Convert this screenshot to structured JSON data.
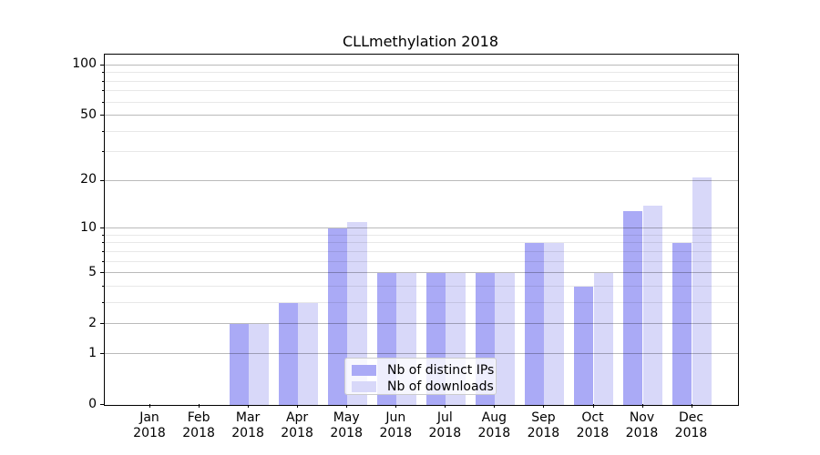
{
  "title": "CLLmethylation 2018",
  "chart_data": {
    "type": "bar",
    "title": "CLLmethylation 2018",
    "categories": [
      "Jan",
      "Feb",
      "Mar",
      "Apr",
      "May",
      "Jun",
      "Jul",
      "Aug",
      "Sep",
      "Oct",
      "Nov",
      "Dec"
    ],
    "year": "2018",
    "series": [
      {
        "name": "Nb of distinct IPs",
        "color": "#aaaaf6",
        "values": [
          0,
          0,
          2,
          3,
          10,
          5,
          5,
          5,
          8,
          4,
          13,
          8
        ]
      },
      {
        "name": "Nb of downloads",
        "color": "#d8d8f9",
        "values": [
          0,
          0,
          2,
          3,
          11,
          5,
          5,
          5,
          8,
          5,
          14,
          21
        ]
      }
    ],
    "xlabel": "",
    "ylabel": "",
    "yscale": "log1p",
    "ylim": [
      0,
      116
    ],
    "y_major_ticks": [
      0,
      1,
      2,
      5,
      10,
      20,
      50,
      100
    ],
    "y_minor_ticks": [
      3,
      4,
      6,
      7,
      8,
      9,
      30,
      40,
      60,
      70,
      80,
      90
    ],
    "grid": true,
    "grid_above_bars": true,
    "legend_position": "lower center",
    "bar_group_offsets": [
      -1,
      0
    ]
  },
  "colors": {
    "background": "#ffffff",
    "axis": "#000000",
    "grid_major": "#bababa",
    "grid_minor": "#e9e9e9",
    "legend_border": "#cccccc",
    "text": "#000000"
  }
}
